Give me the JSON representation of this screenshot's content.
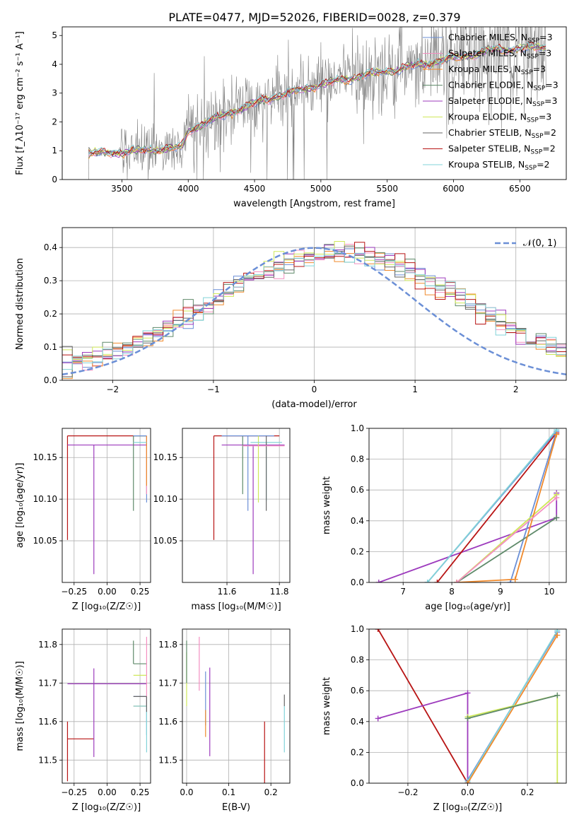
{
  "title": "PLATE=0477, MJD=52026, FIBERID=0028, z=0.379",
  "palette": {
    "chabrier_miles": "#6b8fd6",
    "salpeter_miles": "#f48fc1",
    "kroupa_miles": "#f08a2c",
    "chabrier_elodie": "#5f8a6a",
    "salpeter_elodie": "#9d3bbd",
    "kroupa_elodie": "#cfe85a",
    "chabrier_stelib": "#666666",
    "salpeter_stelib": "#b81414",
    "kroupa_stelib": "#82d3d8",
    "data_spectrum": "#808080",
    "normal_curve": "#6b8fd6"
  },
  "chart_data": [
    {
      "id": "spectrum",
      "type": "line",
      "xlabel": "wavelength [Angstrom, rest frame]",
      "ylabel": "Flux [f_λ10⁻¹⁷ erg cm⁻² s⁻¹ A⁻¹]",
      "xlim": [
        3050,
        6850
      ],
      "ylim": [
        0,
        5.3
      ],
      "xticks": [
        3500,
        4000,
        4500,
        5000,
        5500,
        6000,
        6500
      ],
      "yticks": [
        0,
        1,
        2,
        3,
        4,
        5
      ],
      "grid": false,
      "legend_position": "top-right",
      "wavelength_range": [
        3250,
        6700
      ],
      "continuum_anchors": [
        [
          3250,
          0.9
        ],
        [
          3500,
          0.95
        ],
        [
          3800,
          1.05
        ],
        [
          3950,
          1.1
        ],
        [
          4000,
          1.7
        ],
        [
          4300,
          2.3
        ],
        [
          4600,
          2.8
        ],
        [
          5000,
          3.3
        ],
        [
          5300,
          3.6
        ],
        [
          5600,
          3.85
        ],
        [
          6000,
          4.2
        ],
        [
          6300,
          4.5
        ],
        [
          6700,
          4.6
        ]
      ],
      "legend": [
        {
          "label": "Chabrier MILES, N",
          "sub": "SSP",
          "tail": "=3",
          "color_key": "chabrier_miles"
        },
        {
          "label": "Salpeter MILES, N",
          "sub": "SSP",
          "tail": "=3",
          "color_key": "salpeter_miles"
        },
        {
          "label": "Kroupa MILES, N",
          "sub": "SSP",
          "tail": "=3",
          "color_key": "kroupa_miles"
        },
        {
          "label": "Chabrier ELODIE, N",
          "sub": "SSP",
          "tail": "=3",
          "color_key": "chabrier_elodie"
        },
        {
          "label": "Salpeter ELODIE, N",
          "sub": "SSP",
          "tail": "=3",
          "color_key": "salpeter_elodie"
        },
        {
          "label": "Kroupa ELODIE, N",
          "sub": "SSP",
          "tail": "=3",
          "color_key": "kroupa_elodie"
        },
        {
          "label": "Chabrier STELIB, N",
          "sub": "SSP",
          "tail": "=2",
          "color_key": "chabrier_stelib"
        },
        {
          "label": "Salpeter STELIB, N",
          "sub": "SSP",
          "tail": "=2",
          "color_key": "salpeter_stelib"
        },
        {
          "label": "Kroupa STELIB, N",
          "sub": "SSP",
          "tail": "=2",
          "color_key": "kroupa_stelib"
        }
      ]
    },
    {
      "id": "residuals",
      "type": "histogram",
      "xlabel": "(data-model)/error",
      "ylabel": "Normed distribution",
      "xlim": [
        -2.5,
        2.5
      ],
      "ylim": [
        0,
        0.46
      ],
      "xticks": [
        -2,
        -1,
        0,
        1,
        2
      ],
      "yticks": [
        0.0,
        0.1,
        0.2,
        0.3,
        0.4
      ],
      "grid": true,
      "legend_position": "top-right",
      "normal_label": "𝒩(0, 1)",
      "bin_edges_range": [
        -2.5,
        2.5
      ],
      "bin_count": 50
    },
    {
      "id": "age_vs_Z",
      "type": "errorbar",
      "xlabel": "Z [log₁₀(Z/Z☉)]",
      "ylabel": "age  [log₁₀(age/yr)]",
      "xlim": [
        -0.34,
        0.33
      ],
      "ylim": [
        10.0,
        10.185
      ],
      "xticks": [
        -0.25,
        0.0,
        0.25
      ],
      "yticks": [
        10.05,
        10.1,
        10.15
      ],
      "grid": true,
      "points": [
        {
          "color_key": "salpeter_stelib",
          "x": -0.3,
          "xerr": [
            0,
            0.6
          ],
          "y": 10.176,
          "yerr": [
            0.125,
            0
          ]
        },
        {
          "color_key": "salpeter_elodie",
          "x": -0.3,
          "xerr": [
            0,
            0.6
          ],
          "y": 10.165,
          "yerr": [
            0,
            0
          ]
        },
        {
          "color_key": "salpeter_elodie",
          "x": -0.1,
          "xerr": [
            0,
            0
          ],
          "y": 10.165,
          "yerr": [
            0.155,
            0
          ]
        },
        {
          "color_key": "kroupa_elodie",
          "x": 0.3,
          "xerr": [
            0.1,
            0
          ],
          "y": 10.176,
          "yerr": [
            0.07,
            0
          ]
        },
        {
          "color_key": "chabrier_elodie",
          "x": 0.2,
          "xerr": [
            0,
            0.1
          ],
          "y": 10.176,
          "yerr": [
            0.09,
            0
          ]
        },
        {
          "color_key": "chabrier_miles",
          "x": 0.3,
          "xerr": [
            0.1,
            0
          ],
          "y": 10.176,
          "yerr": [
            0.08,
            0
          ]
        },
        {
          "color_key": "salpeter_miles",
          "x": 0.3,
          "xerr": [
            0,
            0
          ],
          "y": 10.176,
          "yerr": [
            0.07,
            0
          ]
        },
        {
          "color_key": "kroupa_miles",
          "x": 0.3,
          "xerr": [
            0,
            0
          ],
          "y": 10.176,
          "yerr": [
            0.06,
            0
          ]
        },
        {
          "color_key": "kroupa_stelib",
          "x": 0.3,
          "xerr": [
            0.1,
            0
          ],
          "y": 10.168,
          "yerr": [
            0,
            0
          ]
        }
      ]
    },
    {
      "id": "age_vs_mass",
      "type": "errorbar",
      "xlabel": "mass [log₁₀(M/M☉)]",
      "ylabel": "",
      "xlim": [
        11.43,
        11.84
      ],
      "ylim": [
        10.0,
        10.185
      ],
      "xticks": [
        11.6,
        11.8
      ],
      "yticks": [
        10.05,
        10.1,
        10.15
      ],
      "grid": true,
      "points": [
        {
          "color_key": "salpeter_stelib",
          "x": 11.55,
          "xerr": [
            0,
            0.25
          ],
          "y": 10.176,
          "yerr": [
            0.125,
            0
          ]
        },
        {
          "color_key": "salpeter_elodie",
          "x": 11.7,
          "xerr": [
            0.12,
            0.12
          ],
          "y": 10.165,
          "yerr": [
            0.155,
            0
          ]
        },
        {
          "color_key": "chabrier_elodie",
          "x": 11.66,
          "xerr": [
            0,
            0
          ],
          "y": 10.176,
          "yerr": [
            0.07,
            0
          ]
        },
        {
          "color_key": "chabrier_miles",
          "x": 11.68,
          "xerr": [
            0.1,
            0.1
          ],
          "y": 10.176,
          "yerr": [
            0.09,
            0
          ]
        },
        {
          "color_key": "kroupa_elodie",
          "x": 11.72,
          "xerr": [
            0,
            0
          ],
          "y": 10.176,
          "yerr": [
            0.08,
            0
          ]
        },
        {
          "color_key": "kroupa_stelib",
          "x": 11.75,
          "xerr": [
            0.06,
            0.06
          ],
          "y": 10.168,
          "yerr": [
            0.07,
            0
          ]
        },
        {
          "color_key": "chabrier_stelib",
          "x": 11.75,
          "xerr": [
            0,
            0
          ],
          "y": 10.176,
          "yerr": [
            0.09,
            0
          ]
        },
        {
          "color_key": "salpeter_miles",
          "x": 11.74,
          "xerr": [
            0.08,
            0.08
          ],
          "y": 10.164,
          "yerr": [
            0,
            0
          ]
        }
      ]
    },
    {
      "id": "weight_vs_age",
      "type": "line",
      "xlabel": "age  [log₁₀(age/yr)]",
      "ylabel": "mass weight",
      "xlim": [
        6.3,
        10.35
      ],
      "ylim": [
        0,
        1.0
      ],
      "xticks": [
        7,
        8,
        9,
        10
      ],
      "yticks": [
        0.0,
        0.2,
        0.4,
        0.6,
        0.8,
        1.0
      ],
      "grid": true,
      "series": [
        {
          "color_key": "salpeter_elodie",
          "points": [
            [
              6.5,
              0.0
            ],
            [
              10.15,
              0.42
            ],
            [
              10.15,
              0.58
            ]
          ]
        },
        {
          "color_key": "salpeter_stelib",
          "points": [
            [
              7.7,
              0.0
            ],
            [
              10.15,
              0.97
            ]
          ]
        },
        {
          "color_key": "chabrier_miles",
          "points": [
            [
              7.5,
              0.0
            ],
            [
              10.15,
              0.98
            ],
            [
              9.2,
              0.0
            ]
          ]
        },
        {
          "color_key": "kroupa_stelib",
          "points": [
            [
              7.5,
              0.0
            ],
            [
              10.15,
              0.99
            ]
          ]
        },
        {
          "color_key": "chabrier_elodie",
          "points": [
            [
              8.1,
              0.0
            ],
            [
              10.15,
              0.42
            ]
          ]
        },
        {
          "color_key": "kroupa_elodie",
          "points": [
            [
              8.1,
              0.0
            ],
            [
              10.15,
              0.57
            ]
          ]
        },
        {
          "color_key": "kroupa_miles",
          "points": [
            [
              8.1,
              0.0
            ],
            [
              9.3,
              0.02
            ],
            [
              10.15,
              0.96
            ]
          ]
        },
        {
          "color_key": "salpeter_miles",
          "points": [
            [
              8.1,
              0.0
            ],
            [
              10.15,
              0.55
            ]
          ]
        }
      ]
    },
    {
      "id": "mass_vs_Z",
      "type": "errorbar",
      "xlabel": "Z [log₁₀(Z/Z☉)]",
      "ylabel": "mass [log₁₀(M/M☉)]",
      "xlim": [
        -0.34,
        0.33
      ],
      "ylim": [
        11.44,
        11.84
      ],
      "xticks": [
        -0.25,
        0.0,
        0.25
      ],
      "yticks": [
        11.5,
        11.6,
        11.7,
        11.8
      ],
      "grid": true,
      "points": [
        {
          "color_key": "salpeter_stelib",
          "x": -0.3,
          "xerr": [
            0,
            0.2
          ],
          "y": 11.555,
          "yerr": [
            0.11,
            0.045
          ]
        },
        {
          "color_key": "salpeter_elodie",
          "x": -0.1,
          "xerr": [
            0.2,
            0.4
          ],
          "y": 11.698,
          "yerr": [
            0.19,
            0.04
          ]
        },
        {
          "color_key": "chabrier_elodie",
          "x": 0.2,
          "xerr": [
            0,
            0.1
          ],
          "y": 11.75,
          "yerr": [
            0,
            0.06
          ]
        },
        {
          "color_key": "kroupa_elodie",
          "x": 0.2,
          "xerr": [
            0,
            0.1
          ],
          "y": 11.72,
          "yerr": [
            0,
            0
          ]
        },
        {
          "color_key": "chabrier_miles",
          "x": 0.3,
          "xerr": [
            0.1,
            0
          ],
          "y": 11.665,
          "yerr": [
            0.1,
            0
          ]
        },
        {
          "color_key": "salpeter_miles",
          "x": 0.3,
          "xerr": [
            0,
            0
          ],
          "y": 11.72,
          "yerr": [
            0.08,
            0.1
          ]
        },
        {
          "color_key": "kroupa_miles",
          "x": 0.3,
          "xerr": [
            0.1,
            0
          ],
          "y": 11.64,
          "yerr": [
            0,
            0
          ]
        },
        {
          "color_key": "kroupa_stelib",
          "x": 0.3,
          "xerr": [
            0.1,
            0
          ],
          "y": 11.64,
          "yerr": [
            0.12,
            0
          ]
        },
        {
          "color_key": "chabrier_stelib",
          "x": 0.3,
          "xerr": [
            0.1,
            0
          ],
          "y": 11.665,
          "yerr": [
            0.04,
            0
          ]
        }
      ]
    },
    {
      "id": "mass_vs_ebv",
      "type": "errorbar",
      "xlabel": "E(B-V)",
      "ylabel": "",
      "xlim": [
        -0.01,
        0.245
      ],
      "ylim": [
        11.44,
        11.84
      ],
      "xticks": [
        0.0,
        0.1,
        0.2
      ],
      "yticks": [
        11.5,
        11.6,
        11.7,
        11.8
      ],
      "grid": true,
      "points": [
        {
          "color_key": "kroupa_elodie",
          "x": 0.0,
          "y": 11.72,
          "yerr": [
            0.08,
            0.06
          ]
        },
        {
          "color_key": "chabrier_elodie",
          "x": 0.0,
          "y": 11.75,
          "yerr": [
            0.05,
            0.06
          ]
        },
        {
          "color_key": "salpeter_miles",
          "x": 0.03,
          "y": 11.72,
          "yerr": [
            0.04,
            0.1
          ]
        },
        {
          "color_key": "chabrier_miles",
          "x": 0.045,
          "y": 11.66,
          "yerr": [
            0.07,
            0.07
          ]
        },
        {
          "color_key": "kroupa_miles",
          "x": 0.045,
          "y": 11.63,
          "yerr": [
            0.07,
            0
          ]
        },
        {
          "color_key": "salpeter_elodie",
          "x": 0.055,
          "y": 11.64,
          "yerr": [
            0.13,
            0.1
          ]
        },
        {
          "color_key": "salpeter_stelib",
          "x": 0.185,
          "y": 11.55,
          "yerr": [
            0.11,
            0.05
          ]
        },
        {
          "color_key": "kroupa_stelib",
          "x": 0.232,
          "y": 11.58,
          "yerr": [
            0.06,
            0.06
          ]
        },
        {
          "color_key": "chabrier_stelib",
          "x": 0.232,
          "y": 11.64,
          "yerr": [
            0,
            0.03
          ]
        }
      ]
    },
    {
      "id": "weight_vs_Z",
      "type": "line",
      "xlabel": "Z [log₁₀(Z/Z☉)]",
      "ylabel": "mass weight",
      "xlim": [
        -0.33,
        0.33
      ],
      "ylim": [
        0,
        1.0
      ],
      "xticks": [
        -0.2,
        0.0,
        0.2
      ],
      "yticks": [
        0.0,
        0.2,
        0.4,
        0.6,
        0.8,
        1.0
      ],
      "grid": true,
      "series": [
        {
          "color_key": "salpeter_stelib",
          "points": [
            [
              -0.3,
              1.0
            ],
            [
              0.0,
              0.0
            ]
          ]
        },
        {
          "color_key": "salpeter_elodie",
          "points": [
            [
              -0.3,
              0.42
            ],
            [
              0.0,
              0.585
            ],
            [
              0.0,
              0.0
            ]
          ]
        },
        {
          "color_key": "chabrier_miles",
          "points": [
            [
              0.0,
              0.02
            ],
            [
              0.3,
              0.98
            ]
          ]
        },
        {
          "color_key": "kroupa_stelib",
          "points": [
            [
              0.0,
              0.01
            ],
            [
              0.3,
              0.99
            ]
          ]
        },
        {
          "color_key": "kroupa_miles",
          "points": [
            [
              0.0,
              0.0
            ],
            [
              0.3,
              0.96
            ]
          ]
        },
        {
          "color_key": "kroupa_elodie",
          "points": [
            [
              0.0,
              0.43
            ],
            [
              0.3,
              0.57
            ],
            [
              0.3,
              0.0
            ]
          ]
        },
        {
          "color_key": "chabrier_elodie",
          "points": [
            [
              0.0,
              0.42
            ],
            [
              0.3,
              0.57
            ]
          ]
        }
      ]
    }
  ]
}
